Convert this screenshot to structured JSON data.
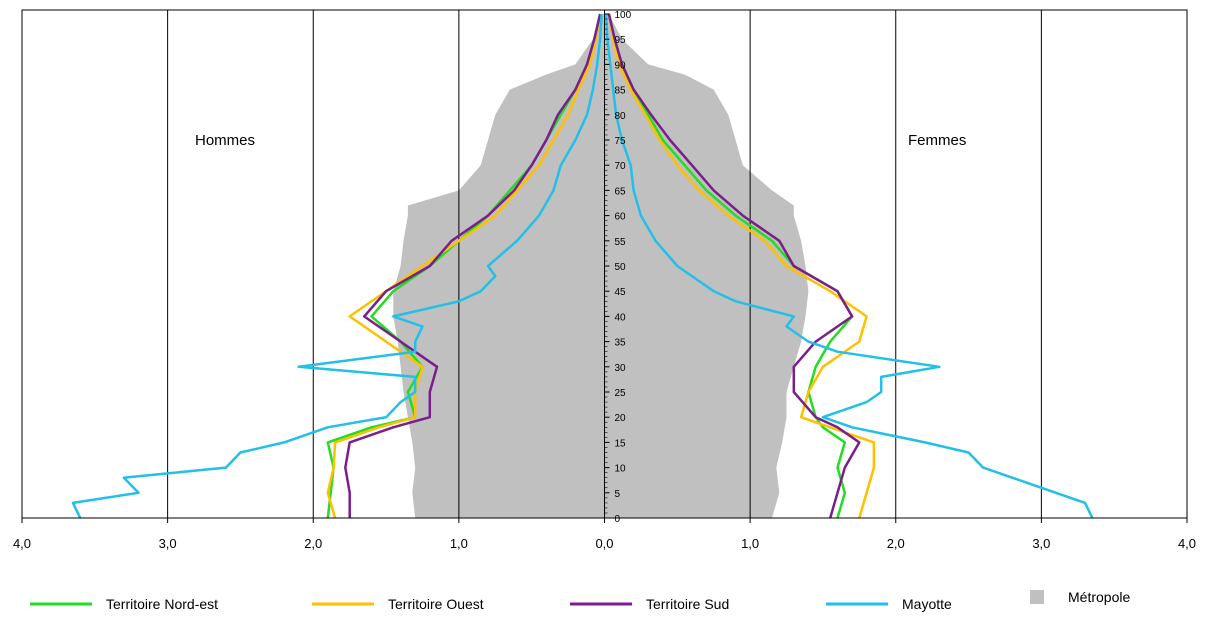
{
  "chart_data": {
    "type": "line",
    "chart_kind": "population-pyramid",
    "title": "",
    "xlabel": "",
    "ylabel": "",
    "left_label": "Hommes",
    "right_label": "Femmes",
    "x_range": [
      -4.0,
      4.0
    ],
    "y_range": [
      0,
      100
    ],
    "x_ticks": [
      {
        "value": -4,
        "label": "4,0"
      },
      {
        "value": -3,
        "label": "3,0"
      },
      {
        "value": -2,
        "label": "2,0"
      },
      {
        "value": -1,
        "label": "1,0"
      },
      {
        "value": 0,
        "label": "0,0"
      },
      {
        "value": 1,
        "label": "1,0"
      },
      {
        "value": 2,
        "label": "2,0"
      },
      {
        "value": 3,
        "label": "3,0"
      },
      {
        "value": 4,
        "label": "4,0"
      }
    ],
    "y_ticks": [
      "0",
      "5",
      "10",
      "15",
      "20",
      "25",
      "30",
      "35",
      "40",
      "45",
      "50",
      "55",
      "60",
      "65",
      "70",
      "75",
      "80",
      "85",
      "90",
      "95",
      "100"
    ],
    "grid_x": true,
    "legend_position": "bottom",
    "series": [
      {
        "name": "Territoire Nord-est",
        "color": "#22dd22",
        "kind": "line",
        "ages": [
          0,
          5,
          10,
          15,
          18,
          20,
          25,
          30,
          35,
          40,
          45,
          50,
          55,
          60,
          65,
          70,
          75,
          80,
          85,
          90,
          95,
          100
        ],
        "hommes": [
          1.9,
          1.88,
          1.86,
          1.9,
          1.6,
          1.3,
          1.35,
          1.25,
          1.4,
          1.6,
          1.45,
          1.2,
          1.0,
          0.8,
          0.65,
          0.5,
          0.4,
          0.3,
          0.2,
          0.12,
          0.07,
          0.03
        ],
        "femmes": [
          1.6,
          1.65,
          1.6,
          1.65,
          1.5,
          1.45,
          1.4,
          1.45,
          1.55,
          1.7,
          1.6,
          1.3,
          1.15,
          0.9,
          0.7,
          0.55,
          0.4,
          0.3,
          0.2,
          0.12,
          0.07,
          0.03
        ]
      },
      {
        "name": "Territoire Ouest",
        "color": "#ffc000",
        "kind": "line",
        "ages": [
          0,
          5,
          10,
          15,
          18,
          20,
          25,
          30,
          35,
          40,
          45,
          50,
          55,
          60,
          65,
          70,
          75,
          80,
          85,
          90,
          95,
          100
        ],
        "hommes": [
          1.85,
          1.9,
          1.86,
          1.85,
          1.55,
          1.3,
          1.3,
          1.25,
          1.5,
          1.75,
          1.5,
          1.25,
          1.0,
          0.75,
          0.6,
          0.45,
          0.35,
          0.25,
          0.18,
          0.1,
          0.06,
          0.03
        ],
        "femmes": [
          1.75,
          1.8,
          1.85,
          1.85,
          1.55,
          1.35,
          1.4,
          1.5,
          1.75,
          1.8,
          1.55,
          1.25,
          1.1,
          0.85,
          0.65,
          0.5,
          0.38,
          0.28,
          0.18,
          0.1,
          0.06,
          0.03
        ]
      },
      {
        "name": "Territoire Sud",
        "color": "#7b1e8c",
        "kind": "line",
        "ages": [
          0,
          5,
          10,
          15,
          18,
          20,
          25,
          30,
          35,
          40,
          45,
          50,
          55,
          60,
          65,
          70,
          75,
          80,
          85,
          90,
          95,
          100
        ],
        "hommes": [
          1.75,
          1.75,
          1.78,
          1.75,
          1.45,
          1.2,
          1.2,
          1.15,
          1.4,
          1.65,
          1.5,
          1.2,
          1.05,
          0.8,
          0.62,
          0.5,
          0.4,
          0.32,
          0.2,
          0.12,
          0.07,
          0.03
        ],
        "femmes": [
          1.55,
          1.6,
          1.65,
          1.75,
          1.6,
          1.45,
          1.3,
          1.3,
          1.45,
          1.7,
          1.6,
          1.3,
          1.2,
          0.95,
          0.75,
          0.6,
          0.45,
          0.32,
          0.2,
          0.12,
          0.07,
          0.03
        ]
      },
      {
        "name": "Mayotte",
        "color": "#22c0e8",
        "kind": "line",
        "ages": [
          0,
          3,
          5,
          8,
          10,
          13,
          15,
          18,
          20,
          23,
          25,
          28,
          30,
          33,
          35,
          38,
          40,
          43,
          45,
          48,
          50,
          55,
          60,
          65,
          70,
          75,
          80,
          85,
          90,
          95,
          100
        ],
        "hommes": [
          3.6,
          3.65,
          3.2,
          3.3,
          2.6,
          2.5,
          2.2,
          1.9,
          1.5,
          1.4,
          1.3,
          1.3,
          2.1,
          1.3,
          1.3,
          1.25,
          1.45,
          1.0,
          0.85,
          0.75,
          0.8,
          0.6,
          0.45,
          0.35,
          0.3,
          0.2,
          0.12,
          0.08,
          0.05,
          0.03,
          0.02
        ],
        "femmes": [
          3.35,
          3.3,
          3.1,
          2.8,
          2.6,
          2.5,
          2.2,
          1.7,
          1.5,
          1.8,
          1.9,
          1.9,
          2.3,
          1.6,
          1.4,
          1.25,
          1.3,
          0.9,
          0.75,
          0.6,
          0.5,
          0.35,
          0.25,
          0.2,
          0.18,
          0.12,
          0.08,
          0.06,
          0.04,
          0.02,
          0.01
        ]
      },
      {
        "name": "Métropole",
        "color": "#c0c0c0",
        "kind": "area",
        "ages": [
          0,
          5,
          10,
          15,
          20,
          25,
          30,
          35,
          40,
          45,
          50,
          55,
          60,
          62,
          65,
          70,
          75,
          80,
          85,
          88,
          90,
          95,
          100
        ],
        "hommes": [
          1.3,
          1.32,
          1.3,
          1.32,
          1.35,
          1.38,
          1.4,
          1.42,
          1.45,
          1.45,
          1.4,
          1.38,
          1.35,
          1.35,
          1.0,
          0.85,
          0.8,
          0.75,
          0.65,
          0.4,
          0.2,
          0.08,
          0.02
        ],
        "femmes": [
          1.15,
          1.2,
          1.18,
          1.22,
          1.25,
          1.25,
          1.3,
          1.35,
          1.38,
          1.4,
          1.38,
          1.35,
          1.3,
          1.3,
          1.15,
          0.95,
          0.9,
          0.85,
          0.75,
          0.55,
          0.3,
          0.12,
          0.03
        ]
      }
    ]
  }
}
